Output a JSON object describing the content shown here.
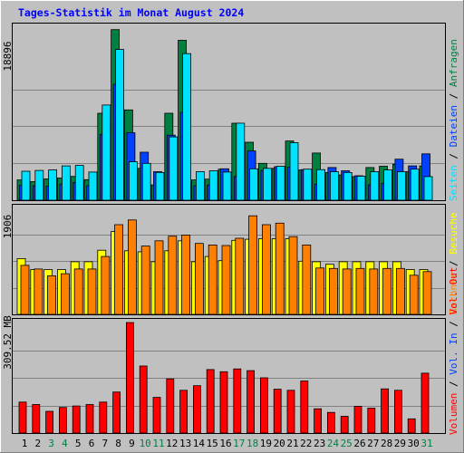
{
  "chart_data": [
    {
      "type": "bar",
      "title": "Tages-Statistik im Monat August 2024",
      "panel": "top",
      "ylabel_tick": "18896",
      "right_label": [
        "Anfragen",
        "Dateien",
        "Seiten"
      ],
      "ylim": [
        0,
        21000
      ],
      "grid": true,
      "categories": [
        "1",
        "2",
        "3",
        "4",
        "5",
        "6",
        "7",
        "8",
        "9",
        "10",
        "11",
        "12",
        "13",
        "14",
        "15",
        "16",
        "17",
        "18",
        "19",
        "20",
        "21",
        "22",
        "23",
        "24",
        "25",
        "26",
        "27",
        "28",
        "29",
        "30",
        "31"
      ],
      "series": [
        {
          "name": "Anfragen",
          "color": "#008040",
          "values": [
            2450,
            2250,
            2580,
            2680,
            2880,
            2480,
            10500,
            20600,
            10900,
            3850,
            1850,
            10500,
            19300,
            2450,
            2550,
            3750,
            9300,
            7000,
            4450,
            3850,
            7150,
            3650,
            5700,
            3350,
            3050,
            2850,
            3950,
            4100,
            4350,
            3450,
            4150
          ]
        },
        {
          "name": "Dateien",
          "color": "#0040ff",
          "values": [
            1800,
            1750,
            1700,
            1950,
            2150,
            1750,
            7950,
            14000,
            8150,
            5800,
            3450,
            7850,
            10600,
            1750,
            1850,
            3800,
            2850,
            5950,
            3600,
            4050,
            4000,
            3700,
            1950,
            3950,
            3550,
            2950,
            1850,
            2050,
            4950,
            4150,
            5600
          ]
        },
        {
          "name": "Seiten",
          "color": "#00e0ff",
          "values": [
            3500,
            3600,
            3650,
            4150,
            4200,
            3400,
            11500,
            18200,
            4650,
            4450,
            3350,
            7650,
            17700,
            3450,
            3550,
            3400,
            9300,
            3800,
            3850,
            4100,
            6950,
            3750,
            3700,
            3450,
            3350,
            2900,
            3450,
            3650,
            3450,
            3750,
            2850
          ]
        }
      ]
    },
    {
      "type": "bar",
      "panel": "middle",
      "ylabel_tick": "1906",
      "right_label": [
        "Rechner",
        "Besuche"
      ],
      "ylim": [
        0,
        2050
      ],
      "grid": true,
      "categories": [
        "1",
        "2",
        "3",
        "4",
        "5",
        "6",
        "7",
        "8",
        "9",
        "10",
        "11",
        "12",
        "13",
        "14",
        "15",
        "16",
        "17",
        "18",
        "19",
        "20",
        "21",
        "22",
        "23",
        "24",
        "25",
        "26",
        "27",
        "28",
        "29",
        "30",
        "31"
      ],
      "series": [
        {
          "name": "Besuche",
          "color": "#ffff00",
          "values": [
            1070,
            860,
            860,
            860,
            1010,
            1010,
            1230,
            1590,
            1220,
            1200,
            1010,
            1220,
            1410,
            1010,
            1110,
            1030,
            1420,
            1440,
            1450,
            1450,
            1450,
            1020,
            1010,
            960,
            1010,
            1010,
            1010,
            1010,
            1010,
            860,
            860
          ]
        },
        {
          "name": "Rechner",
          "color": "#ff8000",
          "values": [
            940,
            870,
            740,
            780,
            870,
            870,
            1110,
            1720,
            1810,
            1310,
            1410,
            1500,
            1520,
            1360,
            1330,
            1320,
            1460,
            1890,
            1720,
            1750,
            1490,
            1330,
            890,
            880,
            870,
            880,
            870,
            880,
            880,
            750,
            820
          ]
        }
      ]
    },
    {
      "type": "bar",
      "panel": "bottom",
      "ylabel_tick": "309.52 MB",
      "right_label": [
        "Volumen",
        "Vol. In",
        "Vol. Out"
      ],
      "ylim": [
        0,
        310
      ],
      "grid": true,
      "categories": [
        "1",
        "2",
        "3",
        "4",
        "5",
        "6",
        "7",
        "8",
        "9",
        "10",
        "11",
        "12",
        "13",
        "14",
        "15",
        "16",
        "17",
        "18",
        "19",
        "20",
        "21",
        "22",
        "23",
        "24",
        "25",
        "26",
        "27",
        "28",
        "29",
        "30",
        "31"
      ],
      "series": [
        {
          "name": "Volumen",
          "color": "#ff0000",
          "values": [
            87,
            80,
            61,
            72,
            76,
            80,
            87,
            115,
            310,
            188,
            100,
            152,
            120,
            133,
            178,
            172,
            180,
            175,
            155,
            123,
            120,
            146,
            68,
            58,
            47,
            75,
            70,
            124,
            120,
            40,
            168
          ]
        }
      ]
    }
  ],
  "legend_colors": {
    "Anfragen": "#008040",
    "Dateien": "#0040ff",
    "Seiten": "#00e0ff",
    "Besuche": "#ffff00",
    "Rechner": "#ff8000",
    "Vol. Out": "#ff0000",
    "Vol. In": "#0040ff",
    "Volumen": "#ff0000"
  },
  "weekend_days": [
    "3",
    "4",
    "10",
    "11",
    "17",
    "18",
    "24",
    "25",
    "31"
  ],
  "colors": {
    "background": "#c0c0c0",
    "title": "#0000ff",
    "weekday_label": "#000000",
    "weekend_label": "#008040"
  }
}
